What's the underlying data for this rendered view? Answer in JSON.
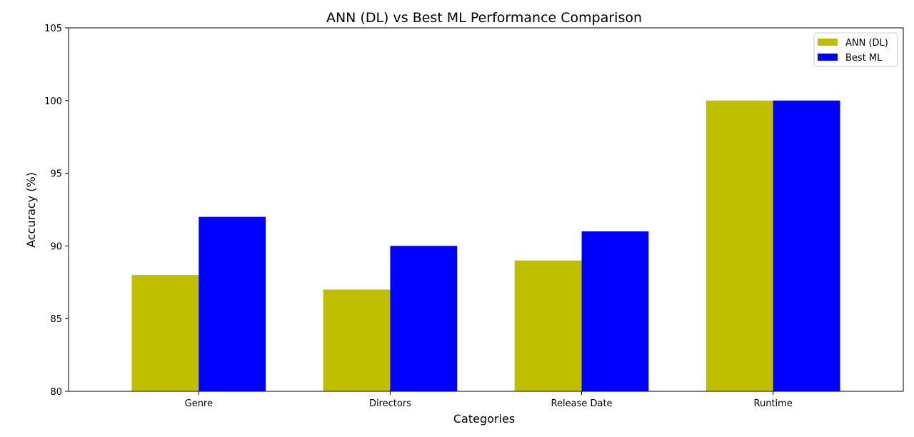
{
  "chart_data": {
    "type": "bar",
    "title": "ANN (DL) vs Best ML Performance Comparison",
    "xlabel": "Categories",
    "ylabel": "Accuracy (%)",
    "categories": [
      "Genre",
      "Directors",
      "Release Date",
      "Runtime"
    ],
    "series": [
      {
        "name": "ANN (DL)",
        "color": "#bfbf00",
        "values": [
          88,
          87,
          89,
          100
        ]
      },
      {
        "name": "Best ML",
        "color": "#0000ff",
        "values": [
          92,
          90,
          91,
          100
        ]
      }
    ],
    "ylim": [
      80,
      105
    ],
    "yticks": [
      80,
      85,
      90,
      95,
      100,
      105
    ],
    "grid": false,
    "legend_position": "top-right"
  }
}
